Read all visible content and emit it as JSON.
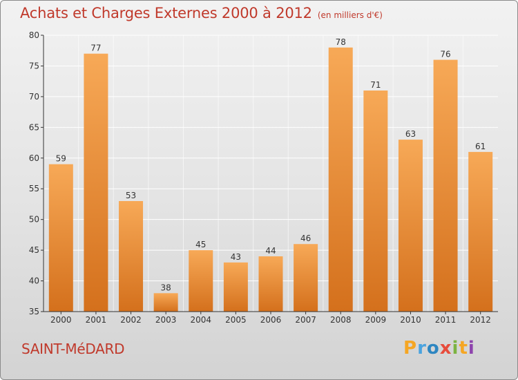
{
  "header": {
    "title": "Achats et Charges Externes 2000 à 2012",
    "unit": "(en milliers d'€)"
  },
  "footer": {
    "place": "SAINT-MéDARD",
    "brand_letters": [
      "P",
      "r",
      "o",
      "x",
      "i",
      "t",
      "i"
    ]
  },
  "colors": {
    "title": "#c0392b",
    "bar_light": "#f7a957",
    "bar_dark": "#d4701c",
    "axis": "#333333",
    "grid": "#ffffff"
  },
  "chart_data": {
    "type": "bar",
    "title": "Achats et Charges Externes 2000 à 2012",
    "subtitle": "(en milliers d'€)",
    "xlabel": "",
    "ylabel": "",
    "categories": [
      "2000",
      "2001",
      "2002",
      "2003",
      "2004",
      "2005",
      "2006",
      "2007",
      "2008",
      "2009",
      "2010",
      "2011",
      "2012"
    ],
    "values": [
      59,
      77,
      53,
      38,
      45,
      43,
      44,
      46,
      78,
      71,
      63,
      76,
      61
    ],
    "ylim": [
      35,
      80
    ],
    "yticks": [
      35,
      40,
      45,
      50,
      55,
      60,
      65,
      70,
      75,
      80
    ],
    "grid": true,
    "data_labels": true
  }
}
